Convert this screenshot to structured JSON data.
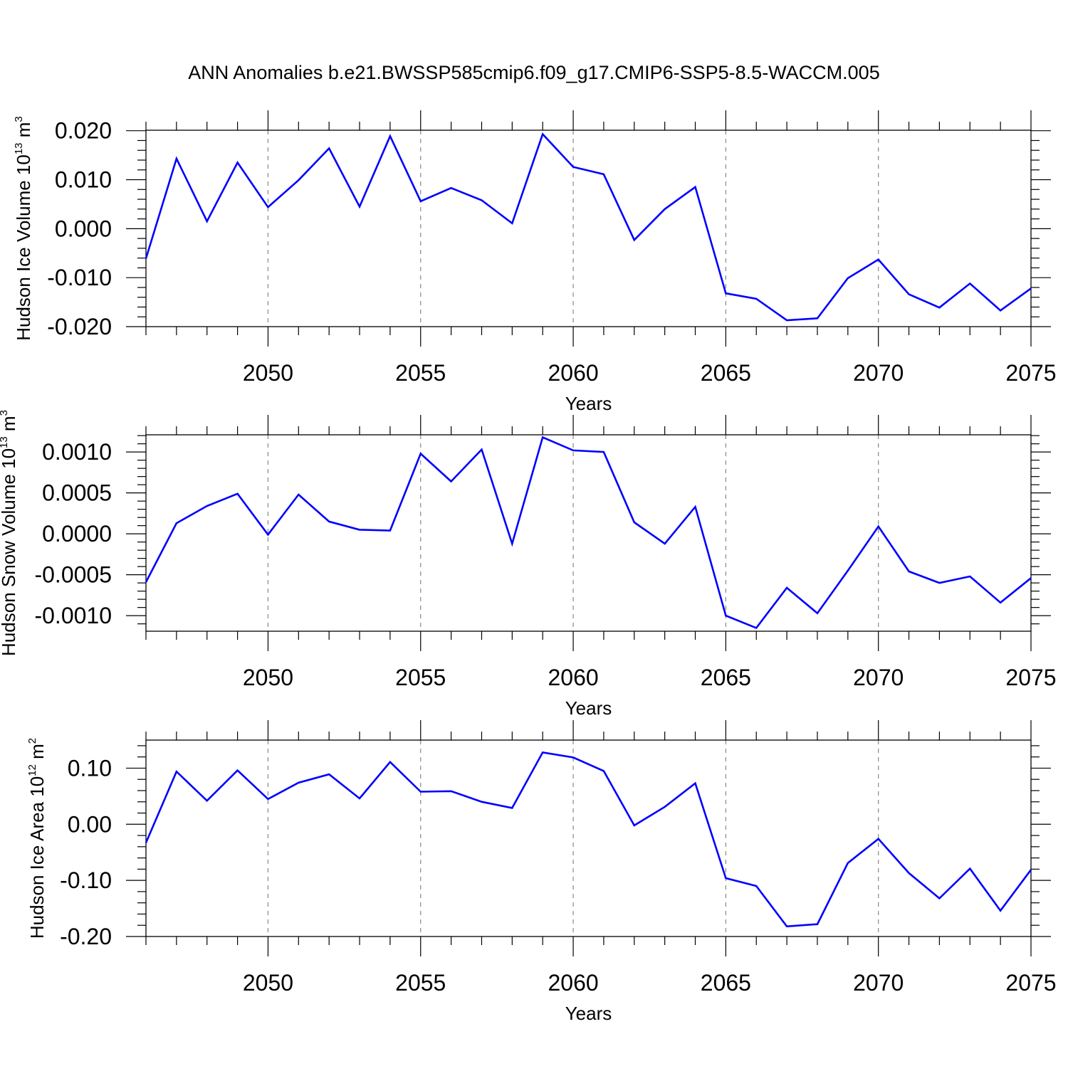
{
  "figure": {
    "title": "ANN Anomalies b.e21.BWSSP585cmip6.f09_g17.CMIP6-SSP5-8.5-WACCM.005",
    "line_color": "#0000ff",
    "grid_color": "#888888"
  },
  "chart_data": [
    {
      "type": "line",
      "ylabel": "Hudson Ice Volume 10",
      "ylabel_exp": "13",
      "ylabel_unit": " m",
      "ylabel_unit_exp": "3",
      "xlabel": "Years",
      "xlim": [
        2046,
        2075
      ],
      "ylim": [
        -0.02,
        0.0201
      ],
      "yticks": [
        -0.02,
        -0.01,
        0.0,
        0.01,
        0.02
      ],
      "ytick_labels": [
        "-0.020",
        "-0.010",
        "0.000",
        "0.010",
        "0.020"
      ],
      "xticks": [
        2050,
        2055,
        2060,
        2065,
        2070,
        2075
      ],
      "xtick_labels": [
        "2050",
        "2055",
        "2060",
        "2065",
        "2070",
        "2075"
      ],
      "grid": "dashed vertical at major x ticks",
      "x": [
        2046,
        2047,
        2048,
        2049,
        2050,
        2051,
        2052,
        2053,
        2054,
        2055,
        2056,
        2057,
        2058,
        2059,
        2060,
        2061,
        2062,
        2063,
        2064,
        2065,
        2066,
        2067,
        2068,
        2069,
        2070,
        2071,
        2072,
        2073,
        2074,
        2075
      ],
      "series": [
        {
          "name": "Hudson Ice Volume",
          "values": [
            -0.0061,
            0.0143,
            0.0015,
            0.0135,
            0.0044,
            0.0099,
            0.0164,
            0.0045,
            0.0189,
            0.0056,
            0.0083,
            0.0058,
            0.0011,
            0.0193,
            0.0126,
            0.0111,
            -0.0023,
            0.004,
            0.0085,
            -0.0132,
            -0.0143,
            -0.0187,
            -0.0183,
            -0.0101,
            -0.0063,
            -0.0134,
            -0.0161,
            -0.0112,
            -0.0167,
            -0.0122
          ]
        }
      ]
    },
    {
      "type": "line",
      "ylabel": "Hudson Snow Volume 10",
      "ylabel_exp": "13",
      "ylabel_unit": " m",
      "ylabel_unit_exp": "3",
      "xlabel": "Years",
      "xlim": [
        2046,
        2075
      ],
      "ylim": [
        -0.00119,
        0.00121
      ],
      "yticks": [
        -0.001,
        -0.0005,
        0.0,
        0.0005,
        0.001
      ],
      "ytick_labels": [
        "-0.0010",
        "-0.0005",
        "0.0000",
        "0.0005",
        "0.0010"
      ],
      "xticks": [
        2050,
        2055,
        2060,
        2065,
        2070,
        2075
      ],
      "xtick_labels": [
        "2050",
        "2055",
        "2060",
        "2065",
        "2070",
        "2075"
      ],
      "grid": "dashed vertical at major x ticks",
      "x": [
        2046,
        2047,
        2048,
        2049,
        2050,
        2051,
        2052,
        2053,
        2054,
        2055,
        2056,
        2057,
        2058,
        2059,
        2060,
        2061,
        2062,
        2063,
        2064,
        2065,
        2066,
        2067,
        2068,
        2069,
        2070,
        2071,
        2072,
        2073,
        2074,
        2075
      ],
      "series": [
        {
          "name": "Hudson Snow Volume",
          "values": [
            -0.00059,
            0.00013,
            0.00034,
            0.00049,
            -1e-05,
            0.00048,
            0.00015,
            5e-05,
            4e-05,
            0.00098,
            0.00064,
            0.00103,
            -0.00012,
            0.00118,
            0.00102,
            0.001,
            0.00014,
            -0.00012,
            0.00033,
            -0.001,
            -0.00115,
            -0.00066,
            -0.00097,
            -0.00045,
            9e-05,
            -0.00046,
            -0.0006,
            -0.00052,
            -0.00084,
            -0.00054
          ]
        }
      ]
    },
    {
      "type": "line",
      "ylabel": "Hudson Ice Area 10",
      "ylabel_exp": "12",
      "ylabel_unit": " m",
      "ylabel_unit_exp": "2",
      "xlabel": "Years",
      "xlim": [
        2046,
        2075
      ],
      "ylim": [
        -0.2,
        0.15
      ],
      "yticks": [
        -0.2,
        -0.1,
        0.0,
        0.1
      ],
      "ytick_labels": [
        "-0.20",
        "-0.10",
        "0.00",
        "0.10"
      ],
      "xticks": [
        2050,
        2055,
        2060,
        2065,
        2070,
        2075
      ],
      "xtick_labels": [
        "2050",
        "2055",
        "2060",
        "2065",
        "2070",
        "2075"
      ],
      "grid": "dashed vertical at major x ticks",
      "x": [
        2046,
        2047,
        2048,
        2049,
        2050,
        2051,
        2052,
        2053,
        2054,
        2055,
        2056,
        2057,
        2058,
        2059,
        2060,
        2061,
        2062,
        2063,
        2064,
        2065,
        2066,
        2067,
        2068,
        2069,
        2070,
        2071,
        2072,
        2073,
        2074,
        2075
      ],
      "series": [
        {
          "name": "Hudson Ice Area",
          "values": [
            -0.033,
            0.094,
            0.042,
            0.096,
            0.045,
            0.074,
            0.089,
            0.046,
            0.111,
            0.058,
            0.059,
            0.04,
            0.029,
            0.128,
            0.119,
            0.095,
            -0.002,
            0.031,
            0.073,
            -0.096,
            -0.11,
            -0.182,
            -0.178,
            -0.069,
            -0.026,
            -0.087,
            -0.132,
            -0.079,
            -0.154,
            -0.081
          ]
        }
      ]
    }
  ]
}
